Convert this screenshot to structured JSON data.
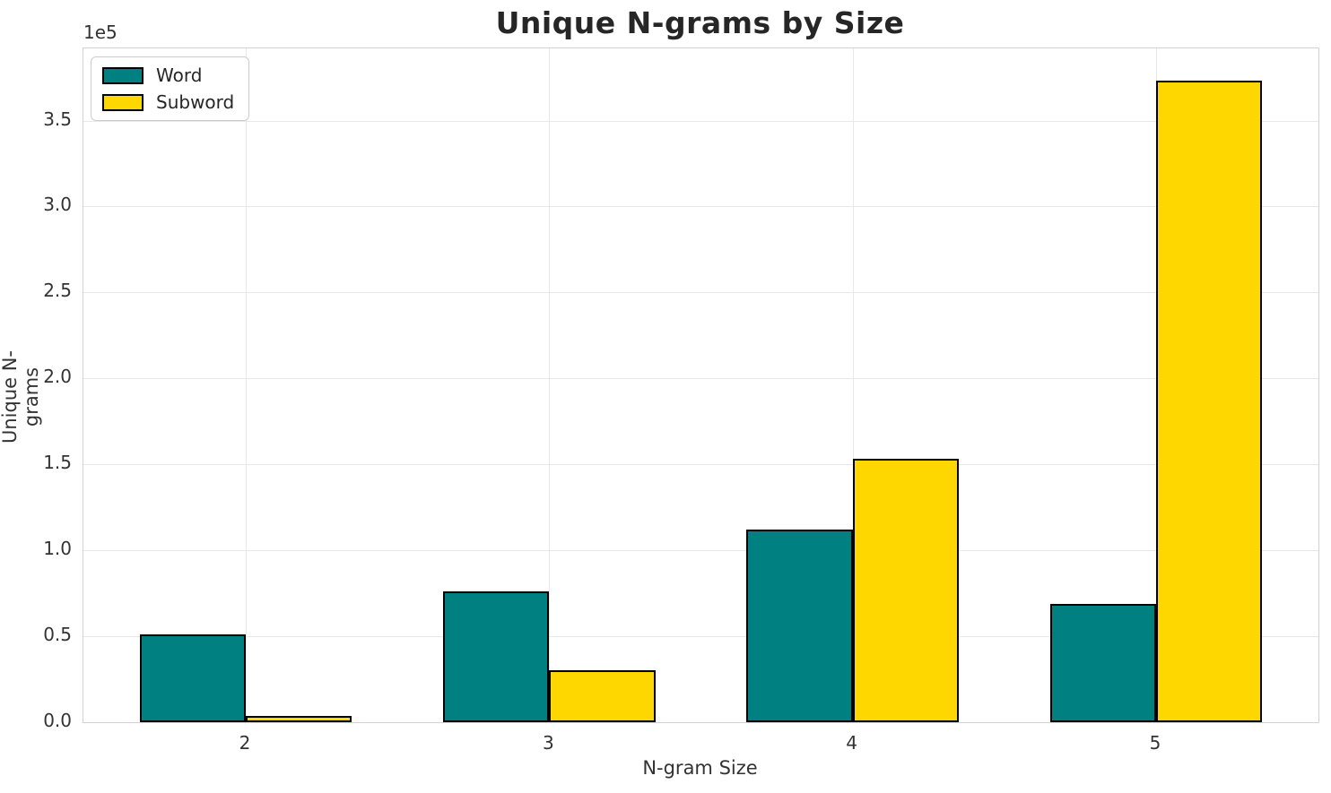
{
  "chart_data": {
    "type": "bar",
    "title": "Unique N-grams by Size",
    "xlabel": "N-gram Size",
    "ylabel": "Unique N-grams",
    "offset_text": "1e5",
    "categories": [
      "2",
      "3",
      "4",
      "5"
    ],
    "x_values": [
      2,
      3,
      4,
      5
    ],
    "series": [
      {
        "name": "Word",
        "color": "#008080",
        "values": [
          51000,
          76000,
          112000,
          69000
        ]
      },
      {
        "name": "Subword",
        "color": "#ffd700",
        "values": [
          3500,
          30000,
          153000,
          373000
        ]
      }
    ],
    "bar_width": 0.35,
    "edge_color": "#000000",
    "xlim": [
      1.465,
      5.535
    ],
    "ylim": [
      0,
      392000
    ],
    "yticks": [
      0,
      50000,
      100000,
      150000,
      200000,
      250000,
      300000,
      350000
    ],
    "ytick_labels": [
      "0.0",
      "0.5",
      "1.0",
      "1.5",
      "2.0",
      "2.5",
      "3.0",
      "3.5"
    ],
    "grid": true,
    "legend_position": "upper left"
  }
}
